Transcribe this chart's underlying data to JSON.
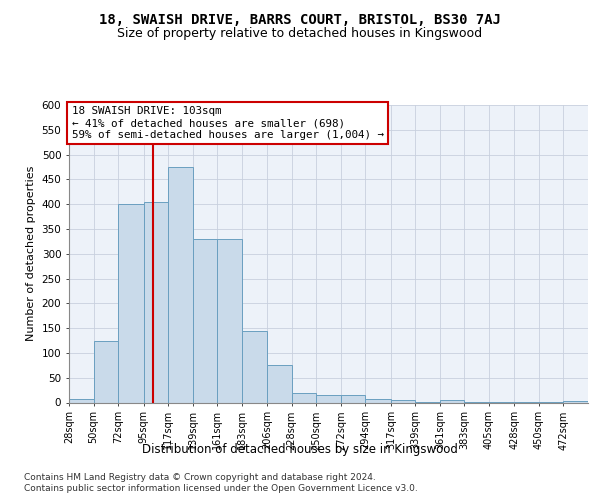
{
  "title": "18, SWAISH DRIVE, BARRS COURT, BRISTOL, BS30 7AJ",
  "subtitle": "Size of property relative to detached houses in Kingswood",
  "xlabel": "Distribution of detached houses by size in Kingswood",
  "ylabel": "Number of detached properties",
  "bar_color": "#c9daea",
  "bar_edge_color": "#6a9fc0",
  "background_color": "#edf2f9",
  "bin_edges": [
    28,
    50,
    72,
    95,
    117,
    139,
    161,
    183,
    206,
    228,
    250,
    272,
    294,
    317,
    339,
    361,
    383,
    405,
    428,
    450,
    472,
    494
  ],
  "bin_labels": [
    "28sqm",
    "50sqm",
    "72sqm",
    "95sqm",
    "117sqm",
    "139sqm",
    "161sqm",
    "183sqm",
    "206sqm",
    "228sqm",
    "250sqm",
    "272sqm",
    "294sqm",
    "317sqm",
    "339sqm",
    "361sqm",
    "383sqm",
    "405sqm",
    "428sqm",
    "450sqm",
    "472sqm"
  ],
  "bar_values": [
    8,
    125,
    400,
    405,
    475,
    330,
    330,
    145,
    75,
    20,
    15,
    15,
    8,
    5,
    2,
    5,
    2,
    1,
    1,
    1,
    4
  ],
  "ylim": [
    0,
    600
  ],
  "yticks": [
    0,
    50,
    100,
    150,
    200,
    250,
    300,
    350,
    400,
    450,
    500,
    550,
    600
  ],
  "property_sqm": 103,
  "property_label": "18 SWAISH DRIVE: 103sqm",
  "annotation_line1": "← 41% of detached houses are smaller (698)",
  "annotation_line2": "59% of semi-detached houses are larger (1,004) →",
  "vline_color": "#cc0000",
  "annotation_box_edge": "#cc0000",
  "footer_line1": "Contains HM Land Registry data © Crown copyright and database right 2024.",
  "footer_line2": "Contains public sector information licensed under the Open Government Licence v3.0.",
  "grid_color": "#c8d0de"
}
